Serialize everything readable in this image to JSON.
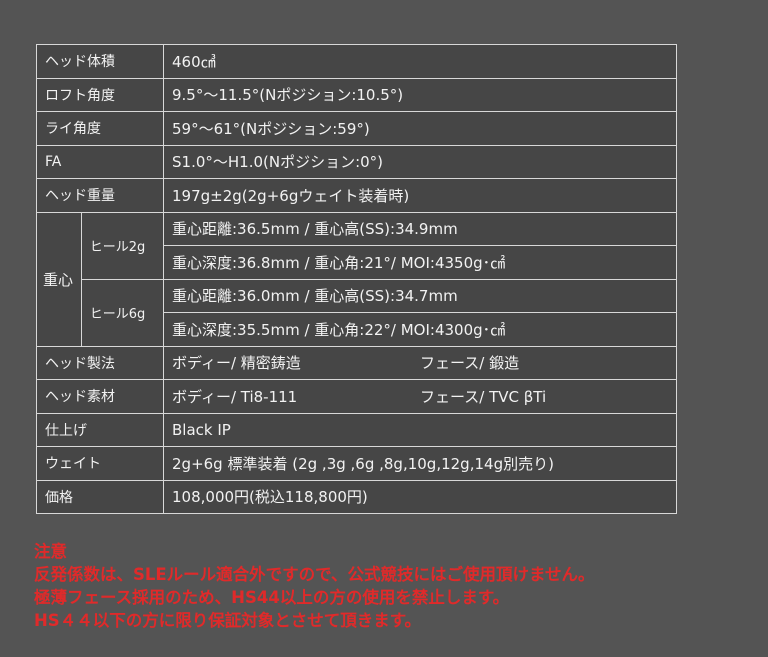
{
  "rows": [
    {
      "label": "ヘッド体積",
      "value": "460㎤"
    },
    {
      "label": "ロフト角度",
      "value": "9.5°〜11.5°(Nポジション:10.5°)"
    },
    {
      "label": "ライ角度",
      "value": "59°〜61°(Nポジション:59°)"
    },
    {
      "label": "FA",
      "value": "S1.0°〜H1.0(Nポジション:0°)"
    },
    {
      "label": "ヘッド重量",
      "value": "197g±2g(2g+6gウェイト装着時)"
    }
  ],
  "cog": {
    "label": "重心",
    "groups": [
      {
        "label": "ヒール2g",
        "line1": "重心距離:36.5mm / 重心高(SS):34.9mm",
        "line2": "重心深度:36.8mm / 重心角:21°/ MOI:4350g･㎠"
      },
      {
        "label": "ヒール6g",
        "line1": "重心距離:36.0mm / 重心高(SS):34.7mm",
        "line2": "重心深度:35.5mm / 重心角:22°/ MOI:4300g･㎠"
      }
    ]
  },
  "method": {
    "label": "ヘッド製法",
    "body": "ボディー/ 精密鋳造",
    "face": "フェース/ 鍛造"
  },
  "material": {
    "label": "ヘッド素材",
    "body": "ボディー/ Ti8-111",
    "face": "フェース/ TVC βTi"
  },
  "rows2": [
    {
      "label": "仕上げ",
      "value": "Black IP"
    },
    {
      "label": "ウェイト",
      "value": "2g+6g 標準装着 (2g ,3g ,6g ,8g,10g,12g,14g別売り)"
    },
    {
      "label": "価格",
      "value": "108,000円(税込118,800円)"
    }
  ],
  "notice": {
    "title": "注意",
    "lines": [
      "反発係数は、SLEルール適合外ですので、公式競技にはご使用頂けません。",
      "極薄フェース採用のため、HS44以上の方の使用を禁止します。",
      "HS４４以下の方に限り保証対象とさせて頂きます。"
    ],
    "color": "#e02a2a"
  }
}
